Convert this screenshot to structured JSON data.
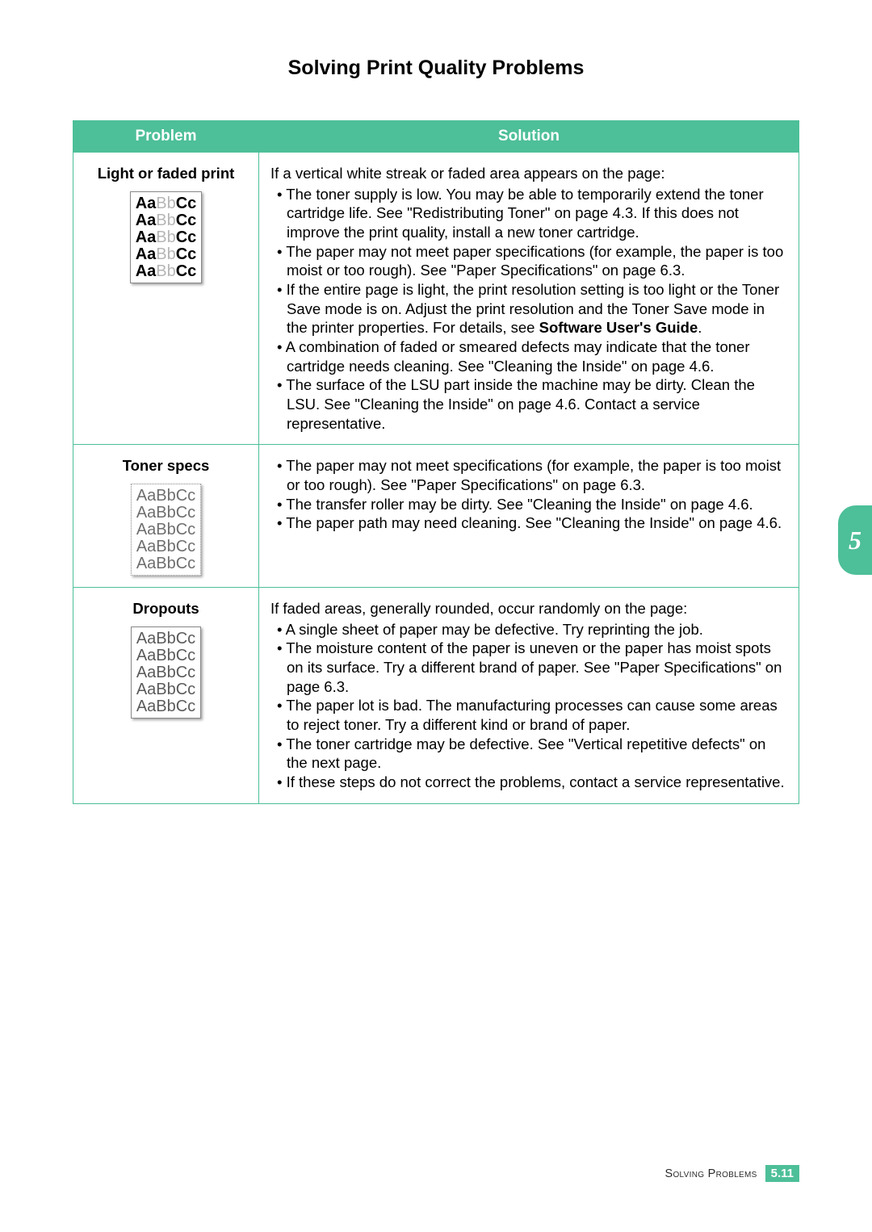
{
  "title": "Solving Print Quality Problems",
  "table": {
    "headers": {
      "problem": "Problem",
      "solution": "Solution"
    },
    "rows": [
      {
        "problem_name": "Light or faded print",
        "sample_style": "faded",
        "sample_lines": [
          "AaBbCc",
          "AaBbCc",
          "AaBbCc",
          "AaBbCc",
          "AaBbCc"
        ],
        "intro": "If a vertical white streak or faded area appears on the page:",
        "bullets": [
          "The toner supply is low. You may be able to temporarily extend the toner cartridge life. See \"Redistributing Toner\" on page 4.3. If this does not improve the print quality, install a new toner cartridge.",
          "The paper may not meet paper specifications (for example, the paper is too moist or too rough). See \"Paper Specifications\" on page 6.3.",
          "If the entire page is light, the print resolution setting is too light or the Toner Save mode is on. Adjust the print resolution and the Toner Save mode in the printer properties. For details, see <b>Software User's Guide</b>.",
          "A combination of faded or smeared defects may indicate that the toner cartridge needs cleaning. See \"Cleaning the Inside\" on page 4.6.",
          "The surface of the LSU part inside the machine may be dirty. Clean the LSU. See \"Cleaning the Inside\" on page 4.6. Contact a service representative."
        ]
      },
      {
        "problem_name": "Toner specs",
        "sample_style": "specs",
        "sample_lines": [
          "AaBbCc",
          "AaBbCc",
          "AaBbCc",
          "AaBbCc",
          "AaBbCc"
        ],
        "intro": "",
        "bullets": [
          "The paper may not meet specifications (for example, the paper is too moist or too rough). See \"Paper Specifications\" on page 6.3.",
          "The transfer roller may be dirty. See \"Cleaning the Inside\" on page 4.6.",
          "The paper path may need cleaning. See \"Cleaning the Inside\" on page 4.6."
        ]
      },
      {
        "problem_name": "Dropouts",
        "sample_style": "dropouts",
        "sample_lines": [
          "AaBbCc",
          "AaBbCc",
          "AaBbCc",
          "AaBbCc",
          "AaBbCc"
        ],
        "intro": "If faded areas, generally rounded, occur randomly on the page:",
        "bullets": [
          "A single sheet of paper may be defective. Try reprinting the job.",
          "The moisture content of the paper is uneven or the paper has moist spots on its surface. Try a different brand of paper. See \"Paper Specifications\" on page 6.3.",
          "The paper lot is bad. The manufacturing processes can cause some areas to reject toner. Try a different kind or brand of paper.",
          "The toner cartridge may be defective. See \"Vertical repetitive defects\" on the next page.",
          "If these steps do not correct the problems, contact a service representative."
        ]
      }
    ]
  },
  "side_tab": "5",
  "footer": {
    "label": "Solving Problems",
    "chapter": "5.",
    "page": "11"
  },
  "colors": {
    "accent": "#4dbf99",
    "text": "#000000",
    "bg": "#ffffff"
  }
}
